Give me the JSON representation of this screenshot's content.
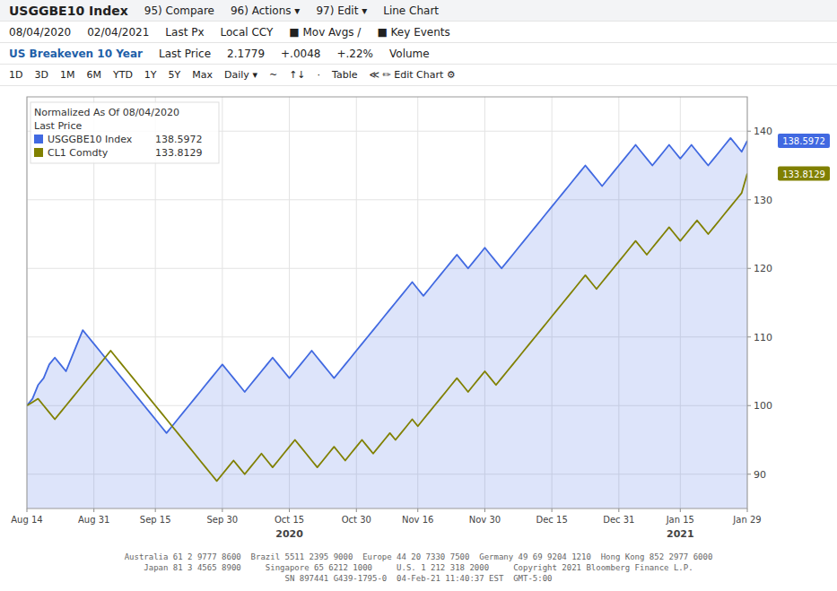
{
  "chart_data": {
    "type": "line",
    "title": "USGGBE10 Index",
    "subtitle": "US Breakeven 10 Year",
    "categories": [
      "Aug 14",
      null,
      null,
      null,
      null,
      null,
      null,
      null,
      null,
      null,
      null,
      null,
      "Aug 31",
      null,
      null,
      null,
      null,
      null,
      null,
      null,
      null,
      null,
      null,
      "Sep 15",
      null,
      null,
      null,
      null,
      null,
      null,
      null,
      null,
      null,
      null,
      null,
      "Sep 30",
      null,
      null,
      null,
      null,
      null,
      null,
      null,
      null,
      null,
      null,
      null,
      "Oct 15",
      null,
      null,
      null,
      null,
      null,
      null,
      null,
      null,
      null,
      null,
      null,
      "Oct 30",
      null,
      null,
      null,
      null,
      null,
      null,
      null,
      null,
      null,
      null,
      "Nov 16",
      null,
      null,
      null,
      null,
      null,
      null,
      null,
      null,
      null,
      null,
      null,
      "Nov 30",
      null,
      null,
      null,
      null,
      null,
      null,
      null,
      null,
      null,
      null,
      null,
      "Dec 15",
      null,
      null,
      null,
      null,
      null,
      null,
      null,
      null,
      null,
      null,
      null,
      "Dec 31",
      null,
      null,
      null,
      null,
      null,
      null,
      null,
      null,
      null,
      null,
      "Jan 15",
      null,
      null,
      null,
      null,
      null,
      null,
      null,
      null,
      null,
      null,
      null,
      "Jan 29"
    ],
    "series": [
      {
        "name": "USGGBE10 Index",
        "color": "#4169e1",
        "type": "area",
        "values": [
          100,
          101,
          103,
          104,
          106,
          107,
          106,
          105,
          107,
          109,
          111,
          110,
          109,
          108,
          107,
          106,
          105,
          104,
          103,
          102,
          101,
          100,
          99,
          98,
          97,
          96,
          97,
          98,
          99,
          100,
          101,
          102,
          103,
          104,
          105,
          106,
          105,
          104,
          103,
          102,
          103,
          104,
          105,
          106,
          107,
          106,
          105,
          104,
          105,
          106,
          107,
          108,
          107,
          106,
          105,
          104,
          105,
          106,
          107,
          108,
          109,
          110,
          111,
          112,
          113,
          114,
          115,
          116,
          117,
          118,
          117,
          116,
          117,
          118,
          119,
          120,
          121,
          122,
          121,
          120,
          121,
          122,
          123,
          122,
          121,
          120,
          121,
          122,
          123,
          124,
          125,
          126,
          127,
          128,
          129,
          130,
          131,
          132,
          133,
          134,
          135,
          134,
          133,
          132,
          133,
          134,
          135,
          136,
          137,
          138,
          137,
          136,
          135,
          136,
          137,
          138,
          137,
          136,
          137,
          138,
          137,
          136,
          135,
          136,
          137,
          138,
          139,
          138,
          137,
          138.5972
        ]
      },
      {
        "name": "CL1 Comdty",
        "color": "#808000",
        "type": "line",
        "values": [
          100,
          100.5,
          101,
          100,
          99,
          98,
          99,
          100,
          101,
          102,
          103,
          104,
          105,
          106,
          107,
          108,
          107,
          106,
          105,
          104,
          103,
          102,
          101,
          100,
          99,
          98,
          97,
          96,
          95,
          94,
          93,
          92,
          91,
          90,
          89,
          90,
          91,
          92,
          91,
          90,
          91,
          92,
          93,
          92,
          91,
          92,
          93,
          94,
          95,
          94,
          93,
          92,
          91,
          92,
          93,
          94,
          93,
          92,
          93,
          94,
          95,
          94,
          93,
          94,
          95,
          96,
          95,
          96,
          97,
          98,
          97,
          98,
          99,
          100,
          101,
          102,
          103,
          104,
          103,
          102,
          103,
          104,
          105,
          104,
          103,
          104,
          105,
          106,
          107,
          108,
          109,
          110,
          111,
          112,
          113,
          114,
          115,
          116,
          117,
          118,
          119,
          118,
          117,
          118,
          119,
          120,
          121,
          122,
          123,
          124,
          123,
          122,
          123,
          124,
          125,
          126,
          125,
          124,
          125,
          126,
          127,
          126,
          125,
          126,
          127,
          128,
          129,
          130,
          131,
          133.8129
        ]
      }
    ],
    "ylim": [
      85,
      145
    ],
    "yticks": [
      90,
      100,
      110,
      120,
      130,
      140
    ],
    "grid": true,
    "legend": "upper left",
    "annotations": [
      {
        "text": "95) Compare"
      },
      {
        "text": "96) Actions ▾"
      },
      {
        "text": "97) Edit ▾"
      },
      {
        "text": "Line Chart"
      },
      {
        "text": "08/04/2020"
      },
      {
        "text": "02/04/2021"
      },
      {
        "text": "Last Px"
      },
      {
        "text": "Local CCY"
      },
      {
        "text": "■ Mov Avgs /"
      },
      {
        "text": "■ Key Events"
      },
      {
        "text": "Last Price"
      },
      {
        "text": "2.1779"
      },
      {
        "text": "+.0048"
      },
      {
        "text": "+.22%"
      },
      {
        "text": "Volume"
      },
      {
        "text": "1D"
      },
      {
        "text": "3D"
      },
      {
        "text": "1M"
      },
      {
        "text": "6M"
      },
      {
        "text": "YTD"
      },
      {
        "text": "1Y"
      },
      {
        "text": "5Y"
      },
      {
        "text": "Max"
      },
      {
        "text": "Daily ▾"
      },
      {
        "text": "~"
      },
      {
        "text": "↑↓"
      },
      {
        "text": "·"
      },
      {
        "text": "Table"
      },
      {
        "text": "≪  ✏ Edit Chart  ⚙"
      },
      {
        "text": "Normalized As Of 08/04/2020"
      },
      {
        "text": "Last Price"
      },
      {
        "text": "2020",
        "x": "Oct 15"
      },
      {
        "text": "2021",
        "x": "Jan 15"
      },
      {
        "text": "Australia 61 2 9777 8600  Brazil 5511 2395 9000  Europe 44 20 7330 7500  Germany 49 69 9204 1210  Hong Kong 852 2977 6000\nJapan 81 3 4565 8900     Singapore 65 6212 1000     U.S. 1 212 318 2000     Copyright 2021 Bloomberg Finance L.P.\nSN 897441 G439-1795-0  04-Feb-21 11:40:37 EST  GMT-5:00"
      }
    ]
  }
}
